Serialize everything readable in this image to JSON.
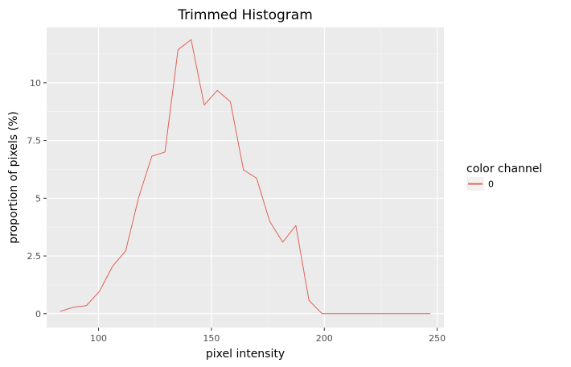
{
  "chart_data": {
    "type": "line",
    "title": "Trimmed Histogram",
    "xlabel": "pixel intensity",
    "ylabel": "proportion of pixels (%)",
    "xlim": [
      77,
      253
    ],
    "ylim": [
      -0.6,
      12.4
    ],
    "x_ticks": [
      100,
      150,
      200,
      250
    ],
    "x_tick_labels": [
      "100",
      "150",
      "200",
      "250"
    ],
    "y_ticks": [
      0,
      2.5,
      5,
      7.5,
      10
    ],
    "y_tick_labels": [
      "0",
      "2.5",
      "5",
      "7.5",
      "10"
    ],
    "x_minor_ticks": [
      125,
      175,
      225
    ],
    "y_minor_ticks": [
      1.25,
      3.75,
      6.25,
      8.75,
      11.25
    ],
    "grid": true,
    "legend": {
      "title": "color channel",
      "placement": "right",
      "entries": [
        "0"
      ]
    },
    "series": [
      {
        "name": "0",
        "color": "#e06156",
        "x": [
          83,
          88.8,
          94.6,
          100.4,
          106.2,
          112,
          117.8,
          123.6,
          129.4,
          135.2,
          141,
          146.8,
          152.6,
          158.4,
          164.2,
          170,
          175.8,
          181.6,
          187.4,
          193.2,
          199,
          247
        ],
        "y": [
          0.1,
          0.28,
          0.35,
          0.97,
          2.05,
          2.72,
          5.05,
          6.82,
          7.0,
          11.43,
          11.87,
          9.04,
          9.67,
          9.18,
          6.23,
          5.87,
          4.0,
          3.1,
          3.82,
          0.58,
          0.0,
          0.0
        ]
      }
    ]
  }
}
